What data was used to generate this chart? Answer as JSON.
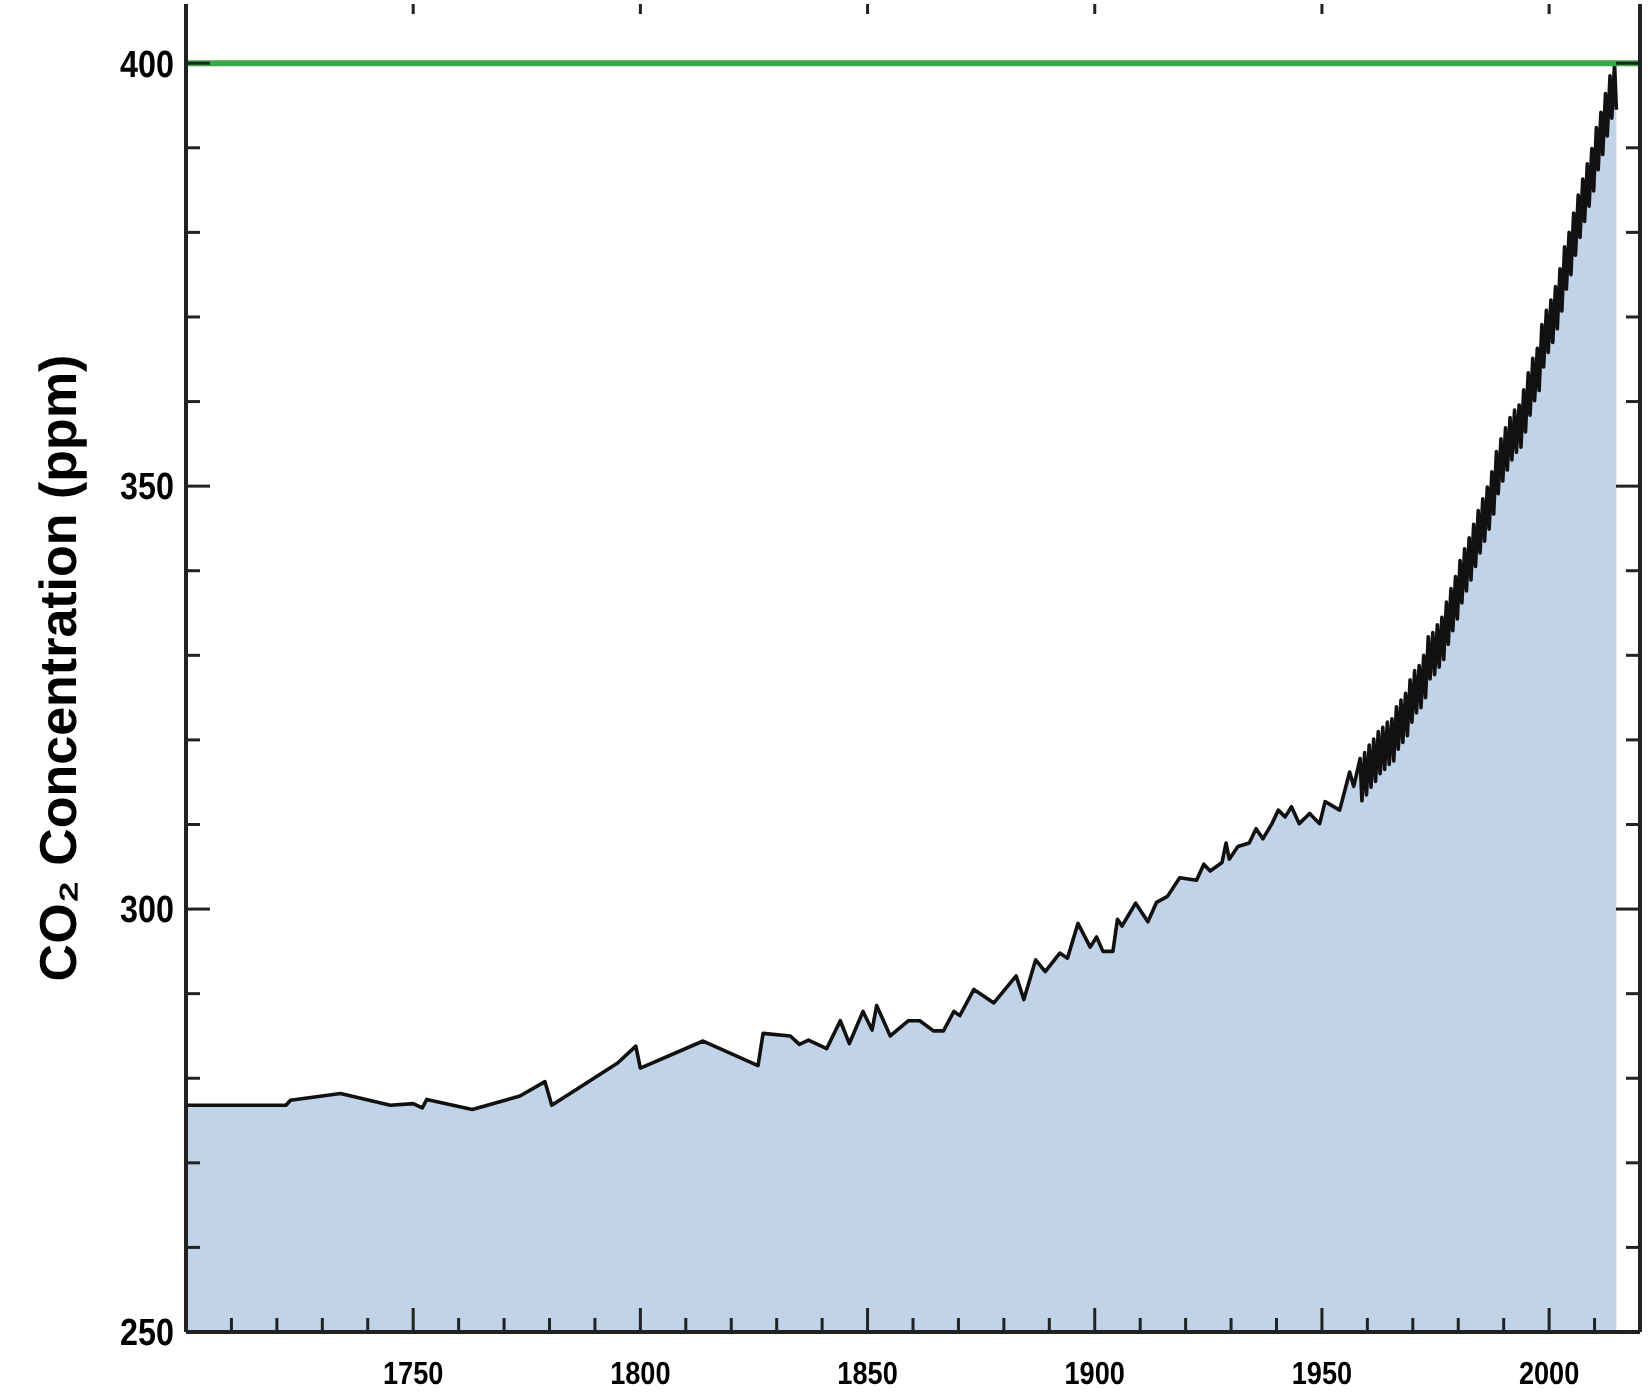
{
  "chart_data": {
    "type": "area",
    "ylabel": "CO₂ Concentration (ppm)",
    "xlim": [
      1700,
      2020
    ],
    "ylim": [
      250,
      407
    ],
    "xticks": [
      {
        "value": 1710,
        "label": null
      },
      {
        "value": 1720,
        "label": null
      },
      {
        "value": 1730,
        "label": null
      },
      {
        "value": 1740,
        "label": null
      },
      1750,
      {
        "value": 1760,
        "label": null
      },
      {
        "value": 1770,
        "label": null
      },
      {
        "value": 1780,
        "label": null
      },
      {
        "value": 1790,
        "label": null
      },
      1800,
      {
        "value": 1810,
        "label": null
      },
      {
        "value": 1820,
        "label": null
      },
      {
        "value": 1830,
        "label": null
      },
      {
        "value": 1840,
        "label": null
      },
      1850,
      {
        "value": 1860,
        "label": null
      },
      {
        "value": 1870,
        "label": null
      },
      {
        "value": 1880,
        "label": null
      },
      {
        "value": 1890,
        "label": null
      },
      1900,
      {
        "value": 1910,
        "label": null
      },
      {
        "value": 1920,
        "label": null
      },
      {
        "value": 1930,
        "label": null
      },
      {
        "value": 1940,
        "label": null
      },
      1950,
      {
        "value": 1960,
        "label": null
      },
      {
        "value": 1970,
        "label": null
      },
      {
        "value": 1980,
        "label": null
      },
      {
        "value": 1990,
        "label": null
      },
      2000,
      {
        "value": 2010,
        "label": null
      }
    ],
    "yticks": [
      250,
      {
        "value": 260,
        "label": null
      },
      {
        "value": 270,
        "label": null
      },
      {
        "value": 280,
        "label": null
      },
      {
        "value": 290,
        "label": null
      },
      300,
      {
        "value": 310,
        "label": null
      },
      {
        "value": 320,
        "label": null
      },
      {
        "value": 330,
        "label": null
      },
      {
        "value": 340,
        "label": null
      },
      350,
      {
        "value": 360,
        "label": null
      },
      {
        "value": 370,
        "label": null
      },
      {
        "value": 380,
        "label": null
      },
      {
        "value": 390,
        "label": null
      },
      400
    ],
    "ref_lines": [
      {
        "axis": "y",
        "value": 400,
        "color": "#3aa64a"
      }
    ],
    "series": [
      {
        "color": "#c0d3e8",
        "x": [
          1700,
          1722,
          1723,
          1734,
          1745,
          1750,
          1752,
          1753,
          1763,
          1773.5,
          1779,
          1780.5,
          1795,
          1799,
          1800,
          1813.8,
          1825.9,
          1827,
          1833,
          1835,
          1837,
          1841,
          1844,
          1846,
          1849,
          1851,
          1852,
          1855,
          1859,
          1861.5,
          1864.5,
          1866.7,
          1869,
          1870.3,
          1873.4,
          1877.8,
          1882.7,
          1884.4,
          1887,
          1889.1,
          1892.3,
          1894,
          1896.3,
          1899,
          1900.4,
          1901.8,
          1904,
          1905,
          1906,
          1909,
          1911.7,
          1913.6,
          1916,
          1918.7,
          1922.4,
          1924,
          1925.4,
          1928,
          1928.9,
          1929.6,
          1931.5,
          1934,
          1935.5,
          1937,
          1939,
          1940.4,
          1941.9,
          1943.3,
          1945,
          1947.3,
          1949.5,
          1950.7,
          1953.9,
          1956.1,
          1957,
          1958.4,
          1958.8,
          1959.4,
          1959.8,
          1960.4,
          1960.8,
          1961.4,
          1961.8,
          1962.4,
          1962.8,
          1963.4,
          1963.8,
          1964.4,
          1964.8,
          1965.4,
          1965.8,
          1966.4,
          1966.8,
          1967.4,
          1967.8,
          1968.4,
          1968.8,
          1969.4,
          1969.8,
          1970.4,
          1970.8,
          1971.4,
          1971.8,
          1972.4,
          1972.8,
          1973.4,
          1973.8,
          1974.4,
          1974.8,
          1975.4,
          1975.8,
          1976.4,
          1976.8,
          1977.4,
          1977.8,
          1978.4,
          1978.8,
          1979.4,
          1979.8,
          1980.4,
          1980.8,
          1981.4,
          1981.8,
          1982.4,
          1982.8,
          1983.4,
          1983.8,
          1984.4,
          1984.8,
          1985.4,
          1985.8,
          1986.4,
          1986.8,
          1987.4,
          1987.8,
          1988.4,
          1988.8,
          1989.4,
          1989.8,
          1990.4,
          1990.8,
          1991.4,
          1991.8,
          1992.4,
          1992.8,
          1993.4,
          1993.8,
          1994.4,
          1994.8,
          1995.4,
          1995.8,
          1996.4,
          1996.8,
          1997.4,
          1997.8,
          1998.4,
          1998.8,
          1999.4,
          1999.8,
          2000.4,
          2000.8,
          2001.4,
          2001.8,
          2002.4,
          2002.8,
          2003.4,
          2003.8,
          2004.4,
          2004.8,
          2005.4,
          2005.8,
          2006.4,
          2006.8,
          2007.4,
          2007.8,
          2008.4,
          2008.8,
          2009.4,
          2009.8,
          2010.4,
          2010.8,
          2011.4,
          2011.8,
          2012.4,
          2012.8,
          2013.4,
          2013.8,
          2014.4,
          2014.8
        ],
        "values": [
          276.8,
          276.8,
          277.4,
          278.2,
          276.8,
          277,
          276.5,
          277.5,
          276.3,
          277.9,
          279.6,
          276.8,
          281.8,
          283.8,
          281.2,
          284.4,
          281.5,
          285.3,
          285,
          284,
          284.5,
          283.5,
          286.8,
          284.1,
          287.9,
          285.7,
          288.6,
          285,
          286.8,
          286.8,
          285.6,
          285.6,
          287.9,
          287.4,
          290.5,
          288.9,
          292.1,
          289.3,
          294,
          292.6,
          294.8,
          294.2,
          298.3,
          295.5,
          296.7,
          295,
          295,
          298.8,
          298,
          300.7,
          298.5,
          300.8,
          301.5,
          303.7,
          303.4,
          305.3,
          304.5,
          305.5,
          307.8,
          305.9,
          307.4,
          307.8,
          309.5,
          308.3,
          310.1,
          311.7,
          310.9,
          312.1,
          310.1,
          311.3,
          310.1,
          312.7,
          311.7,
          316.2,
          314.5,
          317.8,
          312.8,
          318.5,
          313.5,
          319.4,
          314.4,
          320.1,
          315.1,
          321,
          316,
          321.5,
          316.5,
          322.1,
          317.1,
          322.5,
          317.5,
          323.9,
          318.9,
          324.7,
          319.7,
          325.5,
          320.5,
          327.1,
          322.1,
          328.2,
          323.2,
          328.8,
          323.8,
          330,
          325,
          332.2,
          327.2,
          332.7,
          327.7,
          333.6,
          328.6,
          334.5,
          329.5,
          336.3,
          331.3,
          337.9,
          332.9,
          339.3,
          334.3,
          341.2,
          336.2,
          342.6,
          337.6,
          343.9,
          338.9,
          345.5,
          340.5,
          347.1,
          342.1,
          348.5,
          343.5,
          349.9,
          344.9,
          351.7,
          346.7,
          354.1,
          349.1,
          355.6,
          350.6,
          356.9,
          351.9,
          358.1,
          353.1,
          359,
          354,
          359.6,
          354.6,
          361.4,
          356.4,
          363.4,
          358.4,
          365.1,
          360.1,
          366.3,
          361.3,
          369.1,
          364.1,
          370.8,
          365.8,
          372,
          367,
          373.6,
          368.6,
          375.7,
          370.7,
          378.3,
          373.3,
          380,
          375,
          382.3,
          377.3,
          384.4,
          379.4,
          386.3,
          381.3,
          388.1,
          383.1,
          389.9,
          384.9,
          392.4,
          387.4,
          394.2,
          389.2,
          396.4,
          391.4,
          398.5,
          393.5,
          400,
          394.5
        ]
      }
    ]
  }
}
